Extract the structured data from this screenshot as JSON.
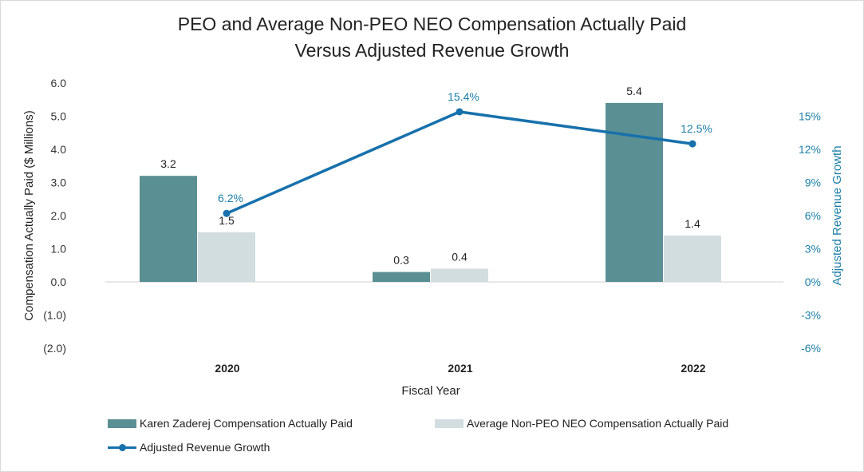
{
  "chart_data": {
    "type": "bar",
    "title": [
      "PEO and Average Non-PEO NEO Compensation Actually Paid",
      "Versus Adjusted Revenue Growth"
    ],
    "categories": [
      "2020",
      "2021",
      "2022"
    ],
    "xlabel": "Fiscal Year",
    "ylabel": "Compensation Actually Paid ($ Millions)",
    "ylim": [
      -2.0,
      6.0
    ],
    "yticks": [
      "6.0",
      "5.0",
      "4.0",
      "3.0",
      "2.0",
      "1.0",
      "0.0",
      "(1.0)",
      "(2.0)"
    ],
    "y2label": "Adjusted Revenue Growth",
    "y2lim": [
      -6,
      18
    ],
    "y2ticks": [
      "15%",
      "12%",
      "9%",
      "6%",
      "3%",
      "0%",
      "-3%",
      "-6%"
    ],
    "series": [
      {
        "name": "Karen Zaderej Compensation Actually Paid",
        "type": "bar",
        "axis": "left",
        "color": "#5a8f94",
        "values": [
          3.2,
          0.3,
          5.4
        ],
        "labels": [
          "3.2",
          "0.3",
          "5.4"
        ]
      },
      {
        "name": "Average Non-PEO NEO Compensation Actually Paid",
        "type": "bar",
        "axis": "left",
        "color": "#d2dde0",
        "values": [
          1.5,
          0.4,
          1.4
        ],
        "labels": [
          "1.5",
          "0.4",
          "1.4"
        ]
      },
      {
        "name": "Adjusted Revenue Growth",
        "type": "line",
        "axis": "right",
        "color": "#1771ac",
        "values": [
          6.2,
          15.4,
          12.5
        ],
        "labels": [
          "6.2%",
          "15.4%",
          "12.5%"
        ]
      }
    ],
    "legend_position": "bottom"
  }
}
